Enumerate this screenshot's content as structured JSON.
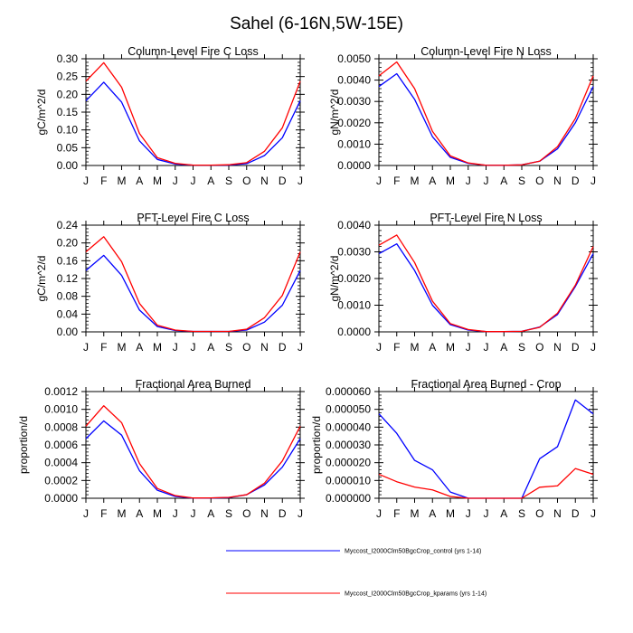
{
  "chart_data": {
    "title": "Sahel (6-16N,5W-15E)",
    "legend": {
      "placement": "bottom-center",
      "entries": [
        {
          "name": "Myccost_I2000Clm50BgcCrop_control (yrs 1-14)",
          "color": "#0000ff"
        },
        {
          "name": "Myccost_I2000Clm50BgcCrop_kparams (yrs 1-14)",
          "color": "#ff0000"
        }
      ]
    },
    "panels": [
      {
        "type": "line",
        "title": "Column-Level Fire C Loss",
        "xlabel": "",
        "ylabel": "gC/m^2/d",
        "x": [
          "J",
          "F",
          "M",
          "A",
          "M",
          "J",
          "J",
          "A",
          "S",
          "O",
          "N",
          "D",
          "J"
        ],
        "ylim": [
          0,
          0.3
        ],
        "yticks": [
          "0.00",
          "0.05",
          "0.10",
          "0.15",
          "0.20",
          "0.25",
          "0.30"
        ],
        "ytick_values": [
          0,
          0.05,
          0.1,
          0.15,
          0.2,
          0.25,
          0.3
        ],
        "series": [
          {
            "name": "control",
            "color": "#0000ff",
            "values": [
              0.182,
              0.234,
              0.178,
              0.069,
              0.017,
              0.004,
              0.001,
              0.001,
              0.001,
              0.005,
              0.028,
              0.078,
              0.182
            ]
          },
          {
            "name": "kparams",
            "color": "#ff0000",
            "values": [
              0.237,
              0.289,
              0.22,
              0.09,
              0.022,
              0.006,
              0.001,
              0.001,
              0.002,
              0.008,
              0.04,
              0.106,
              0.237
            ]
          }
        ]
      },
      {
        "type": "line",
        "title": "Column-Level Fire N Loss",
        "xlabel": "",
        "ylabel": "gN/m^2/d",
        "x": [
          "J",
          "F",
          "M",
          "A",
          "M",
          "J",
          "J",
          "A",
          "S",
          "O",
          "N",
          "D",
          "J"
        ],
        "ylim": [
          0,
          0.005
        ],
        "yticks": [
          "0.0000",
          "0.0010",
          "0.0020",
          "0.0030",
          "0.0040",
          "0.0050"
        ],
        "ytick_values": [
          0,
          0.001,
          0.002,
          0.003,
          0.004,
          0.005
        ],
        "series": [
          {
            "name": "control",
            "color": "#0000ff",
            "values": [
              0.0037,
              0.0043,
              0.0031,
              0.00135,
              0.00038,
              0.0001,
              1e-05,
              1e-05,
              3e-05,
              0.0002,
              0.00078,
              0.002,
              0.0037
            ]
          },
          {
            "name": "kparams",
            "color": "#ff0000",
            "values": [
              0.0042,
              0.00485,
              0.0036,
              0.0016,
              0.00045,
              0.00012,
              1e-05,
              1e-05,
              3e-05,
              0.0002,
              0.00088,
              0.0022,
              0.0042
            ]
          }
        ]
      },
      {
        "type": "line",
        "title": "PFT-Level Fire C Loss",
        "xlabel": "",
        "ylabel": "gC/m^2/d",
        "x": [
          "J",
          "F",
          "M",
          "A",
          "M",
          "J",
          "J",
          "A",
          "S",
          "O",
          "N",
          "D",
          "J"
        ],
        "ylim": [
          0,
          0.24
        ],
        "yticks": [
          "0.00",
          "0.04",
          "0.08",
          "0.12",
          "0.16",
          "0.20",
          "0.24"
        ],
        "ytick_values": [
          0,
          0.04,
          0.08,
          0.12,
          0.16,
          0.2,
          0.24
        ],
        "series": [
          {
            "name": "control",
            "color": "#0000ff",
            "values": [
              0.138,
              0.172,
              0.127,
              0.049,
              0.012,
              0.003,
              0.001,
              0.001,
              0.001,
              0.004,
              0.022,
              0.06,
              0.138
            ]
          },
          {
            "name": "kparams",
            "color": "#ff0000",
            "values": [
              0.18,
              0.214,
              0.158,
              0.064,
              0.015,
              0.004,
              0.001,
              0.001,
              0.001,
              0.006,
              0.032,
              0.082,
              0.18
            ]
          }
        ]
      },
      {
        "type": "line",
        "title": "PFT-Level Fire N Loss",
        "xlabel": "",
        "ylabel": "gN/m^2/d",
        "x": [
          "J",
          "F",
          "M",
          "A",
          "M",
          "J",
          "J",
          "A",
          "S",
          "O",
          "N",
          "D",
          "J"
        ],
        "ylim": [
          0,
          0.004
        ],
        "yticks": [
          "0.0000",
          "0.0010",
          "0.0020",
          "0.0030",
          "0.0040"
        ],
        "ytick_values": [
          0,
          0.001,
          0.002,
          0.003,
          0.004
        ],
        "series": [
          {
            "name": "control",
            "color": "#0000ff",
            "values": [
              0.00293,
              0.0033,
              0.0023,
              0.001,
              0.00027,
              7e-05,
              1e-05,
              1e-05,
              2e-05,
              0.00018,
              0.00065,
              0.0017,
              0.00293
            ]
          },
          {
            "name": "kparams",
            "color": "#ff0000",
            "values": [
              0.00325,
              0.00363,
              0.0026,
              0.00115,
              0.00031,
              9e-05,
              1e-05,
              1e-05,
              2e-05,
              0.00017,
              0.0007,
              0.00175,
              0.0032
            ]
          }
        ]
      },
      {
        "type": "line",
        "title": "Fractional Area Burned",
        "xlabel": "",
        "ylabel": "proportion/d",
        "x": [
          "J",
          "F",
          "M",
          "A",
          "M",
          "J",
          "J",
          "A",
          "S",
          "O",
          "N",
          "D",
          "J"
        ],
        "ylim": [
          0,
          0.0012
        ],
        "yticks": [
          "0.0000",
          "0.0002",
          "0.0004",
          "0.0006",
          "0.0008",
          "0.0010",
          "0.0012"
        ],
        "ytick_values": [
          0,
          0.0002,
          0.0004,
          0.0006,
          0.0008,
          0.001,
          0.0012
        ],
        "series": [
          {
            "name": "control",
            "color": "#0000ff",
            "values": [
              0.00067,
              0.00087,
              0.00071,
              0.00031,
              9e-05,
              2e-05,
              2e-06,
              3e-06,
              7e-06,
              4e-05,
              0.00015,
              0.00035,
              0.00067
            ]
          },
          {
            "name": "kparams",
            "color": "#ff0000",
            "values": [
              0.00081,
              0.00104,
              0.00085,
              0.00039,
              0.00011,
              3e-05,
              3e-06,
              4e-06,
              1e-05,
              4e-05,
              0.00017,
              0.00042,
              0.00081
            ]
          }
        ]
      },
      {
        "type": "line",
        "title": "Fractional Area Burned - Crop",
        "xlabel": "",
        "ylabel": "proportion/d",
        "x": [
          "J",
          "F",
          "M",
          "A",
          "M",
          "J",
          "J",
          "A",
          "S",
          "O",
          "N",
          "D",
          "J"
        ],
        "ylim": [
          0,
          6e-05
        ],
        "yticks": [
          "0.000000",
          "0.000010",
          "0.000020",
          "0.000030",
          "0.000040",
          "0.000050",
          "0.000060"
        ],
        "ytick_values": [
          0,
          1e-05,
          2e-05,
          3e-05,
          4e-05,
          5e-05,
          6e-05
        ],
        "series": [
          {
            "name": "control",
            "color": "#0000ff",
            "values": [
              4.75e-05,
              3.65e-05,
              2.13e-05,
              1.6e-05,
              3.5e-06,
              0,
              0,
              0,
              0,
              2.22e-05,
              2.9e-05,
              5.53e-05,
              4.75e-05
            ]
          },
          {
            "name": "kparams",
            "color": "#ff0000",
            "values": [
              1.35e-05,
              9.3e-06,
              6.3e-06,
              4.7e-06,
              1e-06,
              0,
              0,
              0,
              0,
              6.2e-06,
              7e-06,
              1.67e-05,
              1.35e-05
            ]
          }
        ]
      }
    ]
  }
}
